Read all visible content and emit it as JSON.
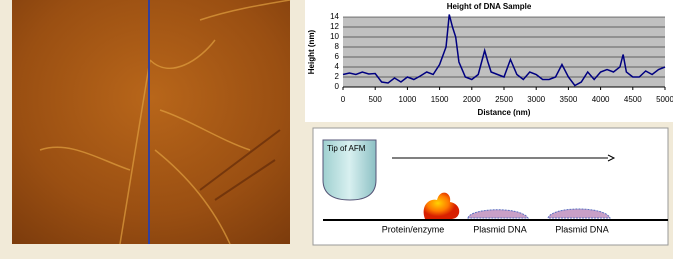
{
  "chart_data": {
    "type": "line",
    "title": "Height of DNA Sample",
    "x_label": "Distance (nm)",
    "y_label": "Height (nm)",
    "x": [
      0,
      100,
      200,
      300,
      400,
      500,
      600,
      700,
      800,
      900,
      1000,
      1100,
      1200,
      1300,
      1400,
      1500,
      1600,
      1650,
      1700,
      1750,
      1800,
      1900,
      2000,
      2100,
      2200,
      2250,
      2300,
      2400,
      2500,
      2600,
      2700,
      2800,
      2900,
      3000,
      3100,
      3200,
      3300,
      3400,
      3500,
      3600,
      3700,
      3800,
      3900,
      4000,
      4100,
      4200,
      4300,
      4350,
      4400,
      4500,
      4600,
      4700,
      4800,
      4900,
      5000
    ],
    "series": [
      {
        "color": "#000080",
        "values": [
          2.5,
          2.8,
          2.5,
          3,
          2.6,
          2.7,
          1,
          0.8,
          1.8,
          1,
          2,
          1.5,
          2.2,
          3,
          2.5,
          4.5,
          8,
          14.5,
          12,
          10,
          5,
          2,
          1.5,
          2.5,
          7.3,
          5,
          3,
          2.5,
          2,
          5.5,
          2.5,
          1.5,
          3,
          2.5,
          1.5,
          1.5,
          2,
          4.5,
          2,
          0.3,
          1,
          3,
          1.5,
          3,
          3.5,
          3,
          4,
          6.5,
          3,
          2,
          2,
          3.2,
          2.5,
          3.5,
          4
        ]
      }
    ],
    "xlim": [
      0,
      5000
    ],
    "xticks": [
      0,
      500,
      1000,
      1500,
      2000,
      2500,
      3000,
      3500,
      4000,
      4500,
      5000
    ],
    "ylim": [
      0,
      14
    ],
    "yticks": [
      0,
      2,
      4,
      6,
      8,
      10,
      12,
      14
    ],
    "grid": true
  },
  "diagram": {
    "tip_label": "Tip of AFM",
    "labels": [
      "Protein/enzyme",
      "Plasmid DNA",
      "Plasmid DNA"
    ]
  }
}
